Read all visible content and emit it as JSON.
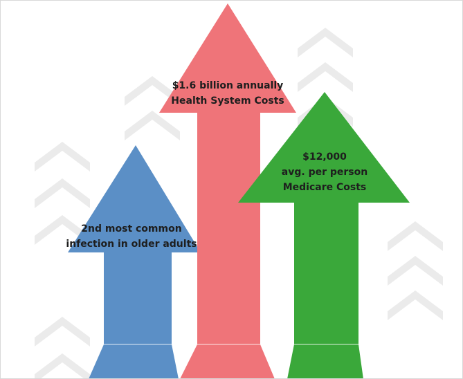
{
  "colors": {
    "background": "#ffffff",
    "chevron": "#ebebeb",
    "blue_arrow": "#5b8fc6",
    "red_arrow": "#ef7479",
    "green_arrow": "#3aa83a",
    "text": "#1e1e1e"
  },
  "arrows": {
    "blue": {
      "line1": "2nd most common",
      "line2": "infection in older adults"
    },
    "red": {
      "line1": "$1.6 billion annually",
      "line2": "Health System Costs"
    },
    "green": {
      "line1": "$12,000",
      "line2": "avg. per person",
      "line3": "Medicare Costs"
    }
  }
}
